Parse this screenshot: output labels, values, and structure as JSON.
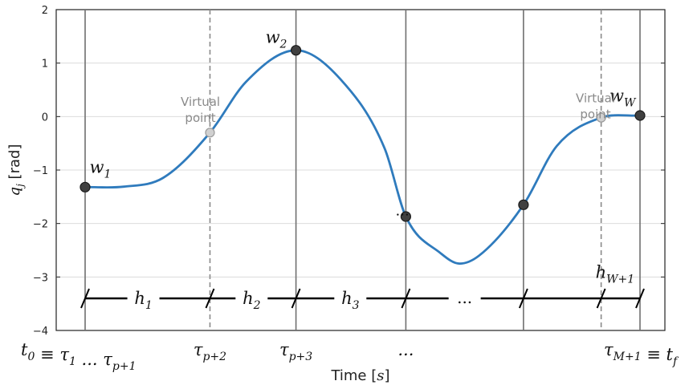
{
  "chart_data": {
    "type": "line",
    "xlabel": "Time [s]",
    "ylabel": "q_j [rad]",
    "ylim": [
      -4,
      2
    ],
    "yticks": [
      2,
      1,
      0,
      -1,
      -2,
      -3,
      -4
    ],
    "ytick_labels": [
      "2",
      "1",
      "0",
      "−1",
      "−2",
      "−3",
      "−4"
    ],
    "grid": true,
    "x_domain": [
      0,
      10
    ],
    "curve_color": "#2f7bbd",
    "point_color": "#404040",
    "virtual_point_color": "#d0d0d0",
    "curve": [
      {
        "x": 0.0,
        "y": -1.32
      },
      {
        "x": 0.7,
        "y": -1.31
      },
      {
        "x": 1.4,
        "y": -1.15
      },
      {
        "x": 2.25,
        "y": -0.3
      },
      {
        "x": 2.9,
        "y": 0.65
      },
      {
        "x": 3.8,
        "y": 1.24
      },
      {
        "x": 4.6,
        "y": 0.7
      },
      {
        "x": 5.4,
        "y": -0.6
      },
      {
        "x": 5.78,
        "y": -1.87
      },
      {
        "x": 6.4,
        "y": -2.55
      },
      {
        "x": 6.75,
        "y": -2.75
      },
      {
        "x": 7.1,
        "y": -2.6
      },
      {
        "x": 7.9,
        "y": -1.65
      },
      {
        "x": 8.5,
        "y": -0.55
      },
      {
        "x": 9.3,
        "y": -0.02
      },
      {
        "x": 10.0,
        "y": 0.02
      }
    ],
    "gridlines": [
      {
        "x": 0.0,
        "style": "solid"
      },
      {
        "x": 2.25,
        "style": "dashed"
      },
      {
        "x": 3.8,
        "style": "solid"
      },
      {
        "x": 5.78,
        "style": "solid"
      },
      {
        "x": 7.9,
        "style": "solid"
      },
      {
        "x": 9.3,
        "style": "dashed"
      },
      {
        "x": 10.0,
        "style": "solid"
      }
    ],
    "waypoints": [
      {
        "x": 0.0,
        "y": -1.32,
        "label": "w",
        "sub": "1",
        "virtual": false,
        "lx": 0.08,
        "ly": -1.05
      },
      {
        "x": 2.25,
        "y": -0.3,
        "label": "",
        "sub": "",
        "virtual": true
      },
      {
        "x": 3.8,
        "y": 1.24,
        "label": "w",
        "sub": "2",
        "virtual": false,
        "lx": 3.25,
        "ly": 1.38
      },
      {
        "x": 5.78,
        "y": -1.87,
        "label": "",
        "sub": "",
        "virtual": false
      },
      {
        "x": 7.9,
        "y": -1.65,
        "label": "",
        "sub": "",
        "virtual": false
      },
      {
        "x": 9.3,
        "y": -0.02,
        "label": "",
        "sub": "",
        "virtual": true
      },
      {
        "x": 10.0,
        "y": 0.02,
        "label": "w",
        "sub": "W",
        "virtual": false,
        "lx": 9.45,
        "ly": 0.28
      }
    ],
    "virtual_point_labels": [
      {
        "line1": "Virtual",
        "line2": "point",
        "x": 1.6,
        "y": 0.05
      },
      {
        "line1": "Virtual",
        "line2": "point",
        "x": 8.72,
        "y": 0.12
      }
    ],
    "ellipsis_near_point": {
      "text": "...",
      "x": 6.1,
      "y": -1.79
    },
    "interval_line_y": -3.4,
    "interval_ticks": [
      0.0,
      2.25,
      3.8,
      5.78,
      7.9,
      9.3,
      10.0
    ],
    "intervals": [
      {
        "label": "h",
        "sub": "1",
        "x": 1.05
      },
      {
        "label": "h",
        "sub": "2",
        "x": 3.0
      },
      {
        "label": "h",
        "sub": "3",
        "x": 4.78
      },
      {
        "label": "...",
        "sub": "",
        "x": 6.84
      },
      {
        "label": "h",
        "sub": "W+1",
        "x": 9.55,
        "y": -3.02
      }
    ],
    "x_tick_labels": [
      {
        "text": "t",
        "sub": "0",
        "tail": " ≡ τ",
        "tail_sub": "1",
        "tail2": " ... τ",
        "tail2_sub": "p+1",
        "x": 0.0,
        "anchor": "start",
        "dx": -80
      },
      {
        "text": "τ",
        "sub": "p+2",
        "x": 2.25
      },
      {
        "text": "τ",
        "sub": "p+3",
        "x": 3.8
      },
      {
        "text": "...",
        "sub": "",
        "x": 5.78
      },
      {
        "text": "τ",
        "sub": "M+1",
        "tail": " ≡ t",
        "tail_sub": "f",
        "x": 10.0,
        "dx": -45
      }
    ]
  }
}
